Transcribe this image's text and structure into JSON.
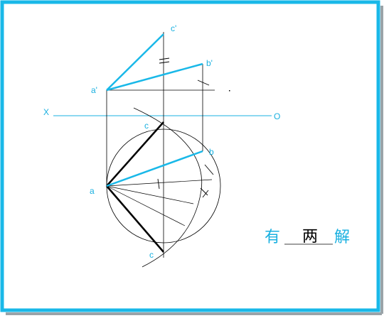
{
  "labels": {
    "c_prime": "c'",
    "b_prime": "b'",
    "a_prime": "a'",
    "x_axis": "X",
    "o_axis": "O",
    "c_top": "c",
    "b": "b",
    "a": "a",
    "c_bottom": "c"
  },
  "answer": {
    "prefix": "有",
    "fill": "两",
    "suffix": "解"
  },
  "colors": {
    "border": "#19b8e8",
    "accent_blue": "#19b0e0",
    "line_black": "#000000"
  }
}
